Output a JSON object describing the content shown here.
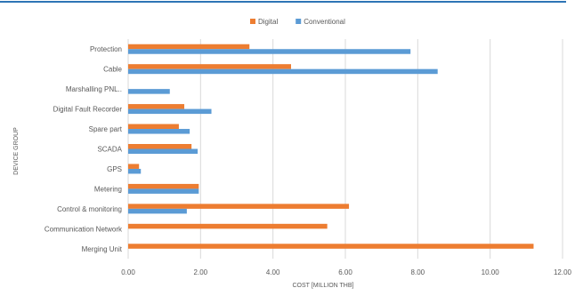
{
  "chart_data": {
    "type": "bar",
    "orientation": "horizontal",
    "xlabel": "COST [MILLION THB]",
    "ylabel": "DEVICE GROUP",
    "xlim": [
      0,
      12
    ],
    "x_ticks": [
      "0.00",
      "2.00",
      "4.00",
      "6.00",
      "8.00",
      "10.00",
      "12.00"
    ],
    "grid": true,
    "legend_position": "top-center",
    "categories": [
      "Protection",
      "Cable",
      "Marshalling PNL..",
      "Digital Fault Recorder",
      "Spare part",
      "SCADA",
      "GPS",
      "Metering",
      "Control & monitoring",
      "Communication Network",
      "Merging Unit"
    ],
    "series": [
      {
        "name": "Digital",
        "color": "#ED7D31",
        "values": [
          3.35,
          4.5,
          0,
          1.55,
          1.4,
          1.75,
          0.3,
          1.95,
          6.1,
          5.5,
          11.2
        ]
      },
      {
        "name": "Conventional",
        "color": "#5B9BD5",
        "values": [
          7.8,
          8.55,
          1.15,
          2.3,
          1.7,
          1.92,
          0.35,
          1.95,
          1.62,
          0,
          0
        ]
      }
    ],
    "top_rule_color": "#2E75B6"
  }
}
